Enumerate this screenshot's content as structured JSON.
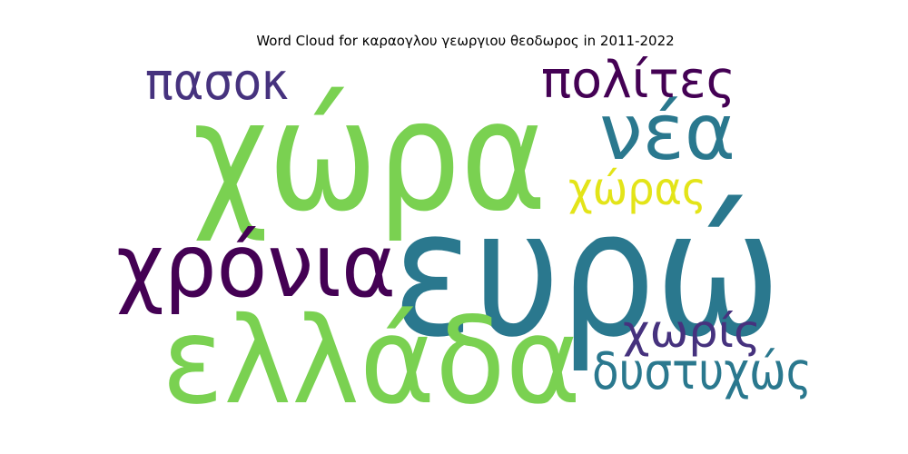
{
  "title": "Word Cloud for καραογλου γεωργιου θεοδωρος in 2011-2022",
  "words": [
    {
      "key": "xora",
      "text": "χώρα",
      "color": "#7ad151"
    },
    {
      "key": "evro",
      "text": "ευρώ",
      "color": "#2a788e"
    },
    {
      "key": "ellada",
      "text": "ελλάδα",
      "color": "#7ad151"
    },
    {
      "key": "chronia",
      "text": "χρόνια",
      "color": "#440154"
    },
    {
      "key": "nea",
      "text": "νέα",
      "color": "#2a788e"
    },
    {
      "key": "polites",
      "text": "πολίτες",
      "color": "#440154"
    },
    {
      "key": "pasok",
      "text": "πασοκ",
      "color": "#46327e"
    },
    {
      "key": "xoras",
      "text": "χώρας",
      "color": "#e3e418"
    },
    {
      "key": "choris",
      "text": "χωρίς",
      "color": "#46327e"
    },
    {
      "key": "dystychos",
      "text": "δυστυχώς",
      "color": "#2a788e"
    }
  ]
}
